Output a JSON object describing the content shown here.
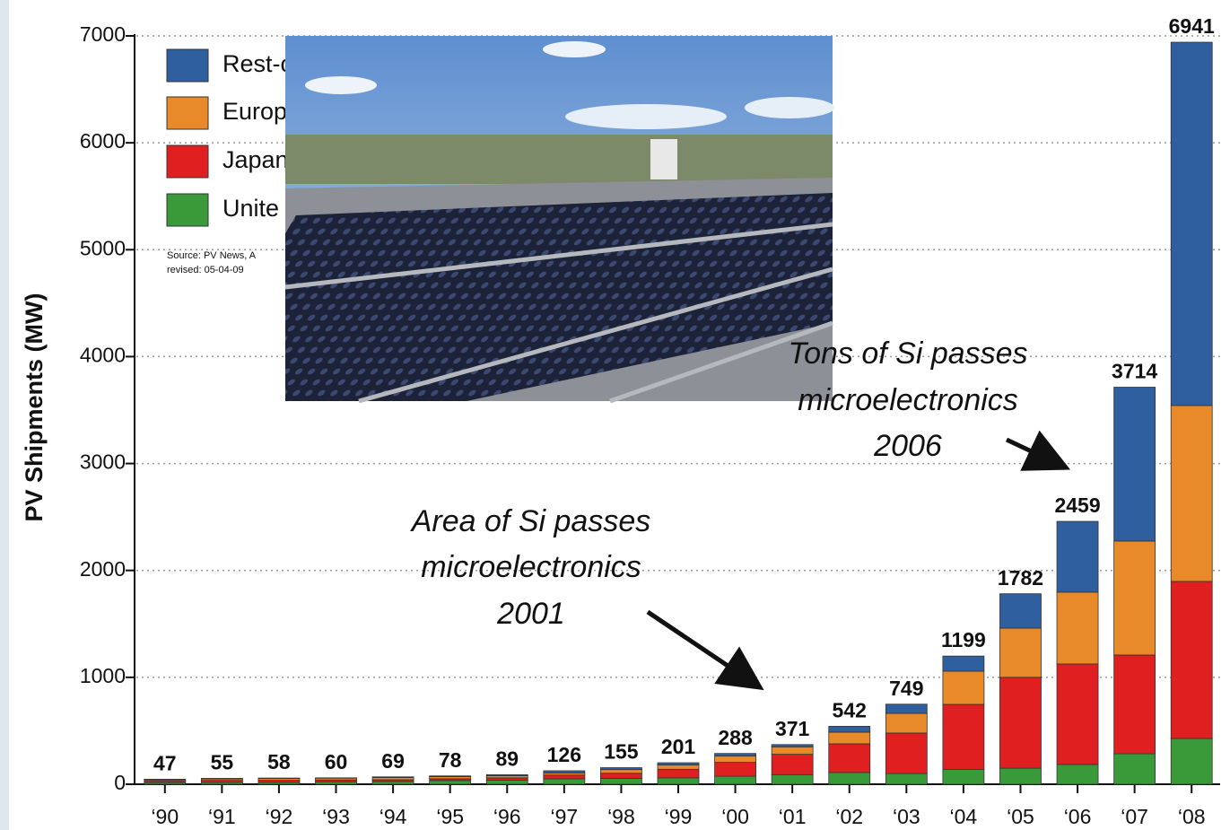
{
  "chart_data": {
    "type": "stacked_bar",
    "ylabel": "PV Shipments (MW)",
    "categories": [
      "‘90",
      "‘91",
      "‘92",
      "‘93",
      "‘94",
      "‘95",
      "‘96",
      "‘97",
      "‘98",
      "‘99",
      "‘00",
      "‘01",
      "‘02",
      "‘03",
      "‘04",
      "‘05",
      "‘06",
      "‘07",
      "‘08"
    ],
    "series": [
      {
        "name": "Unite",
        "color": "#3a9a3a",
        "values": [
          15,
          17,
          18,
          23,
          26,
          35,
          39,
          51,
          54,
          60,
          75,
          90,
          110,
          100,
          140,
          150,
          185,
          285,
          428
        ]
      },
      {
        "name": "Japan",
        "color": "#e02020",
        "values": [
          17,
          19,
          19,
          17,
          16,
          16,
          21,
          35,
          49,
          80,
          130,
          190,
          268,
          379,
          607,
          850,
          940,
          924,
          1469
        ]
      },
      {
        "name": "Europ",
        "color": "#e8892a",
        "values": [
          10,
          14,
          17,
          17,
          21,
          20,
          19,
          19,
          34,
          40,
          60,
          70,
          109,
          184,
          311,
          460,
          672,
          1066,
          1646
        ]
      },
      {
        "name": "Rest-o",
        "color": "#2f5f9e",
        "values": [
          5,
          5,
          4,
          3,
          6,
          7,
          10,
          21,
          18,
          21,
          23,
          21,
          55,
          86,
          141,
          322,
          662,
          1439,
          3398
        ]
      }
    ],
    "totals": [
      47,
      55,
      58,
      60,
      69,
      78,
      89,
      126,
      155,
      201,
      288,
      371,
      542,
      749,
      1199,
      1782,
      2459,
      3714,
      6941
    ],
    "ylim": [
      0,
      7000
    ],
    "yticks": [
      0,
      1000,
      2000,
      3000,
      4000,
      5000,
      6000,
      7000
    ],
    "grid": true,
    "source": [
      "Source: PV News, A",
      "revised: 05-04-09"
    ],
    "annotations": [
      [
        "Area of Si passes",
        "microelectronics",
        "2001"
      ],
      [
        "Tons of Si passes",
        "microelectronics",
        "2006"
      ]
    ]
  }
}
